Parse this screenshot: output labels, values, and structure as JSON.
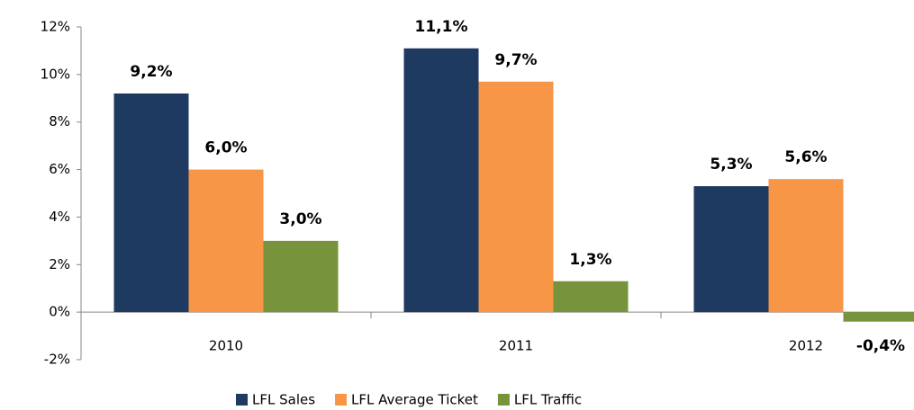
{
  "chart_data": {
    "type": "bar",
    "categories": [
      "2010",
      "2011",
      "2012"
    ],
    "series": [
      {
        "name": "LFL Sales",
        "color": "#1f3a60",
        "values": [
          9.2,
          11.1,
          5.3
        ],
        "value_labels": [
          "9,2%",
          "11,1%",
          "5,3%"
        ]
      },
      {
        "name": "LFL Average Ticket",
        "color": "#f79646",
        "values": [
          6.0,
          9.7,
          5.6
        ],
        "value_labels": [
          "6,0%",
          "9,7%",
          "5,6%"
        ]
      },
      {
        "name": "LFL Traffic",
        "color": "#77933c",
        "values": [
          3.0,
          1.3,
          -0.4
        ],
        "value_labels": [
          "3,0%",
          "1,3%",
          "-0,4%"
        ]
      }
    ],
    "ylim": [
      -2,
      12
    ],
    "yticks": [
      {
        "value": -2,
        "label": "-2%"
      },
      {
        "value": 0,
        "label": "0%"
      },
      {
        "value": 2,
        "label": "2%"
      },
      {
        "value": 4,
        "label": "4%"
      },
      {
        "value": 6,
        "label": "6%"
      },
      {
        "value": 8,
        "label": "8%"
      },
      {
        "value": 10,
        "label": "10%"
      },
      {
        "value": 12,
        "label": "12%"
      }
    ],
    "legend": "bottom"
  }
}
